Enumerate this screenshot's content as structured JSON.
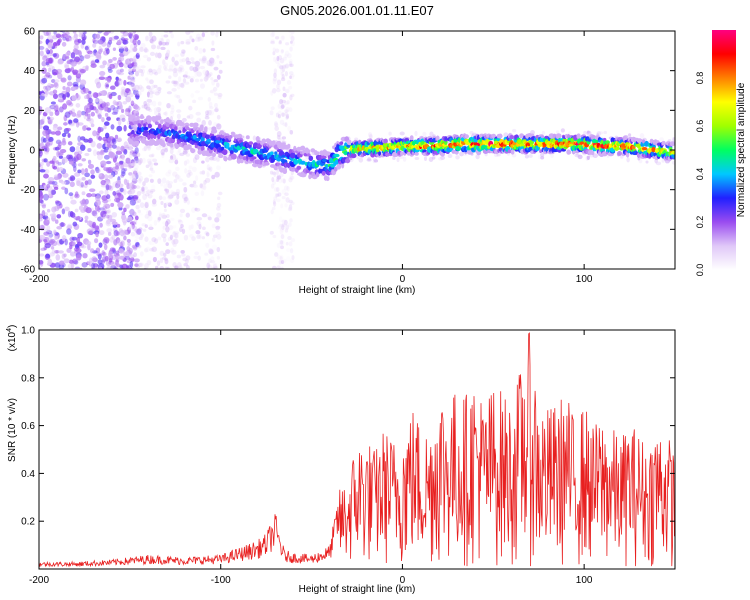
{
  "title": "GN05.2026.001.01.11.E07",
  "chart_data": [
    {
      "type": "heatmap",
      "xlabel": "Height of straight line (km)",
      "ylabel": "Frequency (Hz)",
      "xlim": [
        -200,
        150
      ],
      "ylim": [
        -60,
        60
      ],
      "xticks": [
        -200,
        -100,
        0,
        100
      ],
      "yticks": [
        -60,
        -40,
        -20,
        0,
        20,
        40,
        60
      ],
      "colorbar": {
        "label": "Normalized spectral amplitude",
        "range": [
          0,
          1
        ],
        "ticks": [
          0.0,
          0.2,
          0.4,
          0.6,
          0.8
        ],
        "colormap": [
          "#ffffff",
          "#e0c8f8",
          "#9a4cf0",
          "#2020ff",
          "#00c8ff",
          "#00ff60",
          "#a0ff00",
          "#ffff00",
          "#ff8000",
          "#ff0000",
          "#ff0080"
        ]
      },
      "ridge": {
        "x": [
          -150,
          -140,
          -130,
          -120,
          -110,
          -100,
          -90,
          -80,
          -70,
          -60,
          -50,
          -40,
          -35,
          -30,
          -20,
          -10,
          0,
          10,
          20,
          30,
          40,
          50,
          60,
          70,
          80,
          90,
          100,
          110,
          120,
          130,
          140,
          150
        ],
        "frequency": [
          10,
          10,
          9,
          7,
          5,
          3,
          1,
          -1,
          -3,
          -5,
          -7,
          -8,
          -2,
          0,
          1,
          1,
          2,
          2,
          2,
          3,
          3,
          3,
          3,
          3,
          3,
          3,
          3,
          2,
          2,
          1,
          0,
          -1
        ],
        "amplitude": [
          0.3,
          0.35,
          0.35,
          0.38,
          0.4,
          0.42,
          0.45,
          0.45,
          0.42,
          0.42,
          0.45,
          0.5,
          0.6,
          0.7,
          0.78,
          0.82,
          0.85,
          0.88,
          0.9,
          0.92,
          0.92,
          0.92,
          0.92,
          0.92,
          0.92,
          0.92,
          0.92,
          0.9,
          0.88,
          0.85,
          0.8,
          0.78
        ]
      }
    },
    {
      "type": "line",
      "xlabel": "Height of straight line (km)",
      "ylabel": "SNR (10 * v/v)",
      "yscale_label": "(x10",
      "yscale_exp": "4",
      "yscale_close": ")",
      "xlim": [
        -200,
        150
      ],
      "ylim": [
        0,
        1.0
      ],
      "xticks": [
        -200,
        -100,
        0,
        100
      ],
      "yticks": [
        0.2,
        0.4,
        0.6,
        0.8,
        1.0
      ],
      "color": "#e82020",
      "envelope": {
        "x": [
          -200,
          -180,
          -160,
          -150,
          -140,
          -120,
          -100,
          -90,
          -80,
          -75,
          -70,
          -65,
          -60,
          -50,
          -40,
          -35,
          -30,
          -25,
          -20,
          -15,
          -10,
          -5,
          0,
          5,
          10,
          15,
          20,
          25,
          30,
          35,
          40,
          45,
          50,
          55,
          60,
          65,
          70,
          75,
          80,
          85,
          90,
          95,
          100,
          105,
          110,
          115,
          120,
          125,
          130,
          135,
          140,
          145,
          150
        ],
        "y": [
          0.03,
          0.03,
          0.04,
          0.05,
          0.06,
          0.05,
          0.06,
          0.09,
          0.12,
          0.15,
          0.24,
          0.08,
          0.07,
          0.06,
          0.1,
          0.33,
          0.4,
          0.55,
          0.56,
          0.5,
          0.6,
          0.55,
          0.58,
          0.7,
          0.62,
          0.6,
          0.78,
          0.72,
          0.76,
          0.74,
          0.82,
          0.7,
          0.78,
          0.75,
          0.7,
          0.85,
          1.0,
          0.72,
          0.68,
          0.7,
          0.75,
          0.62,
          0.7,
          0.6,
          0.65,
          0.6,
          0.55,
          0.62,
          0.58,
          0.52,
          0.62,
          0.58,
          0.5
        ]
      }
    }
  ]
}
